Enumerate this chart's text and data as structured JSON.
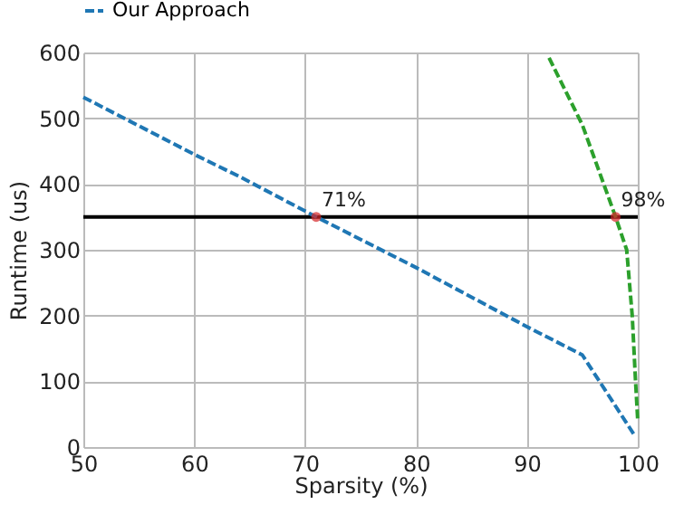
{
  "chart_data": {
    "type": "line",
    "xlabel": "Sparsity (%)",
    "ylabel": "Runtime (us)",
    "xlim": [
      50,
      100
    ],
    "ylim": [
      0,
      600
    ],
    "xticks": [
      50,
      60,
      70,
      80,
      90,
      100
    ],
    "yticks": [
      0,
      100,
      200,
      300,
      400,
      500,
      600
    ],
    "grid": true,
    "legend": "top",
    "series": [
      {
        "color": "#000000",
        "line_style": "solid",
        "x": [
          50,
          100
        ],
        "values": [
          350,
          350
        ]
      },
      {
        "color": "#2ca02c",
        "line_style": "dashed",
        "x": [
          92,
          95,
          98,
          99,
          99.5,
          99.8,
          100
        ],
        "values": [
          592,
          490,
          350,
          300,
          200,
          100,
          40
        ]
      },
      {
        "name": "Our Approach",
        "color": "#1f77b4",
        "line_style": "dashed",
        "x": [
          50,
          60,
          64,
          71,
          80,
          90,
          95,
          99.7
        ],
        "values": [
          532,
          445,
          412,
          350,
          273,
          183,
          140,
          18
        ]
      },
      {
        "type": "scatter",
        "color": "#d62728",
        "marker": "circle",
        "x": [
          71,
          98
        ],
        "values": [
          350,
          350
        ]
      }
    ],
    "annotations": [
      {
        "text": "71%",
        "x": 71,
        "y": 350
      },
      {
        "text": "98%",
        "x": 98,
        "y": 350
      }
    ]
  }
}
